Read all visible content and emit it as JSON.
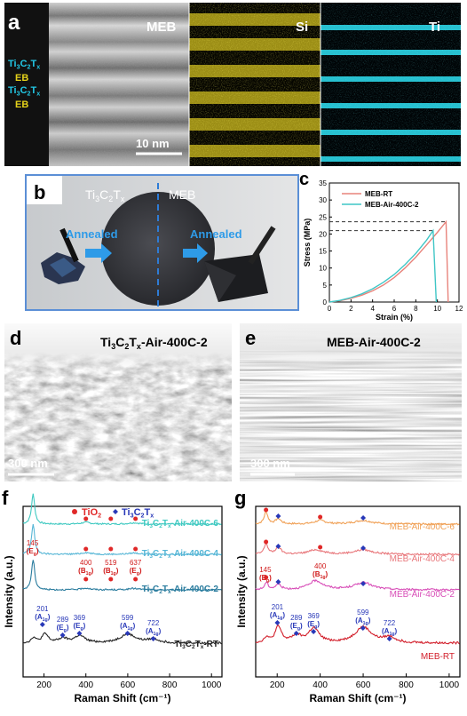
{
  "panel_a": {
    "label": "a",
    "meb_title": "MEB",
    "si_title": "Si",
    "ti_title": "Ti",
    "scale": "10 nm",
    "side_labels": [
      {
        "main": "Ti",
        "sub1": "3",
        "mid": "C",
        "sub2": "2",
        "end": "T",
        "sub3": "x",
        "kind": "mxene"
      },
      {
        "main": "EB",
        "kind": "eb"
      },
      {
        "main": "Ti",
        "sub1": "3",
        "mid": "C",
        "sub2": "2",
        "end": "T",
        "sub3": "x",
        "kind": "mxene"
      },
      {
        "main": "EB",
        "kind": "eb"
      }
    ],
    "colors": {
      "mxene": "#22c8e6",
      "eb": "#e5d21a",
      "si": "#e0d22a",
      "ti": "#27d6e8"
    }
  },
  "panel_b": {
    "label": "b",
    "left_title_main": "Ti",
    "left_title_sub1": "3",
    "left_title_mid": "C",
    "left_title_sub2": "2",
    "left_title_end": "T",
    "left_title_sub3": "x",
    "right_title": "MEB",
    "left_arrow": "Annealed",
    "right_arrow": "Annealed"
  },
  "panel_c": {
    "label": "c",
    "chart_data": {
      "type": "line",
      "xlabel": "Strain (%)",
      "ylabel": "Stress (MPa)",
      "xlim": [
        0,
        12
      ],
      "ylim": [
        0,
        35
      ],
      "xticks": [
        0,
        2,
        4,
        6,
        8,
        10,
        12
      ],
      "yticks": [
        0,
        5,
        10,
        15,
        20,
        25,
        30,
        35
      ],
      "legend_position": "top-right",
      "grid": false,
      "series": [
        {
          "name": "MEB-RT",
          "color": "#e8837b",
          "points": [
            [
              0,
              0
            ],
            [
              1,
              0.4
            ],
            [
              2,
              1.1
            ],
            [
              3,
              2.0
            ],
            [
              4,
              3.3
            ],
            [
              5,
              5.0
            ],
            [
              6,
              7.2
            ],
            [
              7,
              10.0
            ],
            [
              8,
              13.2
            ],
            [
              9,
              16.8
            ],
            [
              10,
              20.5
            ],
            [
              10.8,
              23.6
            ],
            [
              11.0,
              0
            ]
          ]
        },
        {
          "name": "MEB-Air-400C-2",
          "color": "#3fc6c6",
          "points": [
            [
              0,
              0
            ],
            [
              1,
              0.5
            ],
            [
              2,
              1.3
            ],
            [
              3,
              2.4
            ],
            [
              4,
              3.9
            ],
            [
              5,
              5.8
            ],
            [
              6,
              8.1
            ],
            [
              7,
              11.0
            ],
            [
              8,
              14.3
            ],
            [
              9,
              18.2
            ],
            [
              9.6,
              21.0
            ],
            [
              9.9,
              0
            ]
          ]
        }
      ],
      "reference_levels": [
        23.6,
        21.0
      ]
    }
  },
  "panel_d": {
    "label": "d",
    "title_main": "Ti",
    "title_sub1": "3",
    "title_mid": "C",
    "title_sub2": "2",
    "title_end": "T",
    "title_sub3": "x",
    "title_suffix": "-Air-400C-2",
    "scale": "300 nm"
  },
  "panel_e": {
    "label": "e",
    "title": "MEB-Air-400C-2",
    "scale": "300 nm"
  },
  "panel_f": {
    "label": "f",
    "legend_tio2": "TiO",
    "legend_tio2_sub": "2",
    "legend_mx_main": "Ti",
    "legend_mx_sub1": "3",
    "legend_mx_mid": "C",
    "legend_mx_sub2": "2",
    "legend_mx_end": "T",
    "legend_mx_sub3": "x",
    "chart_data": {
      "type": "line",
      "xlabel": "Raman Shift (cm⁻¹)",
      "ylabel": "Intensity (a.u.)",
      "xlim": [
        100,
        1050
      ],
      "xticks": [
        200,
        400,
        600,
        800,
        1000
      ],
      "series": [
        {
          "name": "Ti3C2Tx-Air-400C-6",
          "color": "#3fc9c1",
          "offset": 3.0
        },
        {
          "name": "Ti3C2Tx-Air-400C-4",
          "color": "#56b6d6",
          "offset": 2.1
        },
        {
          "name": "Ti3C2Tx-Air-400C-2",
          "color": "#2a7c9e",
          "offset": 1.2
        },
        {
          "name": "Ti3C2Tx-RT",
          "color": "#222222",
          "offset": 0
        }
      ],
      "series_labels": [
        {
          "main": "Ti",
          "sub1": "3",
          "mid": "C",
          "sub2": "2",
          "end": "T",
          "sub3": "x",
          "suffix": "-Air-400C-6"
        },
        {
          "main": "Ti",
          "sub1": "3",
          "mid": "C",
          "sub2": "2",
          "end": "T",
          "sub3": "x",
          "suffix": "-Air-400C-4"
        },
        {
          "main": "Ti",
          "sub1": "3",
          "mid": "C",
          "sub2": "2",
          "end": "T",
          "sub3": "x",
          "suffix": "-Air-400C-2"
        },
        {
          "main": "Ti",
          "sub1": "3",
          "mid": "C",
          "sub2": "2",
          "end": "T",
          "sub3": "x",
          "suffix": "-RT"
        }
      ],
      "tio2_peaks": [
        {
          "x": 145,
          "num": "145",
          "sym": "E",
          "sub": "g"
        },
        {
          "x": 400,
          "num": "400",
          "sym": "B",
          "sub": "1g"
        },
        {
          "x": 519,
          "num": "519",
          "sym": "B",
          "sub": "1g"
        },
        {
          "x": 637,
          "num": "637",
          "sym": "E",
          "sub": "g"
        }
      ],
      "mxene_peaks": [
        {
          "x": 201,
          "num": "201",
          "sym": "A",
          "sub": "1g"
        },
        {
          "x": 289,
          "num": "289",
          "sym": "E",
          "sub": "g"
        },
        {
          "x": 369,
          "num": "369",
          "sym": "E",
          "sub": "g"
        },
        {
          "x": 599,
          "num": "599",
          "sym": "A",
          "sub": "1g"
        },
        {
          "x": 722,
          "num": "722",
          "sym": "A",
          "sub": "1g"
        }
      ]
    }
  },
  "panel_g": {
    "label": "g",
    "chart_data": {
      "type": "line",
      "xlabel": "Raman Shift (cm⁻¹)",
      "ylabel": "Intensity (a.u.)",
      "xlim": [
        100,
        1050
      ],
      "xticks": [
        200,
        400,
        600,
        800,
        1000
      ],
      "series": [
        {
          "name": "MEB-Air-400C-6",
          "color": "#f0a055",
          "offset": 3.0
        },
        {
          "name": "MEB-Air-400C-4",
          "color": "#e8767a",
          "offset": 2.1
        },
        {
          "name": "MEB-Air-400C-2",
          "color": "#d84fb8",
          "offset": 1.2
        },
        {
          "name": "MEB-RT",
          "color": "#d21e2a",
          "offset": 0
        }
      ],
      "tio2_peaks": [
        {
          "x": 145,
          "num": "145",
          "sym": "E",
          "sub": "g"
        },
        {
          "x": 400,
          "num": "400",
          "sym": "B",
          "sub": "1g"
        }
      ],
      "mxene_peaks": [
        {
          "x": 201,
          "num": "201",
          "sym": "A",
          "sub": "1g"
        },
        {
          "x": 289,
          "num": "289",
          "sym": "E",
          "sub": "g"
        },
        {
          "x": 369,
          "num": "369",
          "sym": "E",
          "sub": "g"
        },
        {
          "x": 599,
          "num": "599",
          "sym": "A",
          "sub": "1g"
        },
        {
          "x": 722,
          "num": "722",
          "sym": "A",
          "sub": "1g"
        }
      ]
    }
  }
}
